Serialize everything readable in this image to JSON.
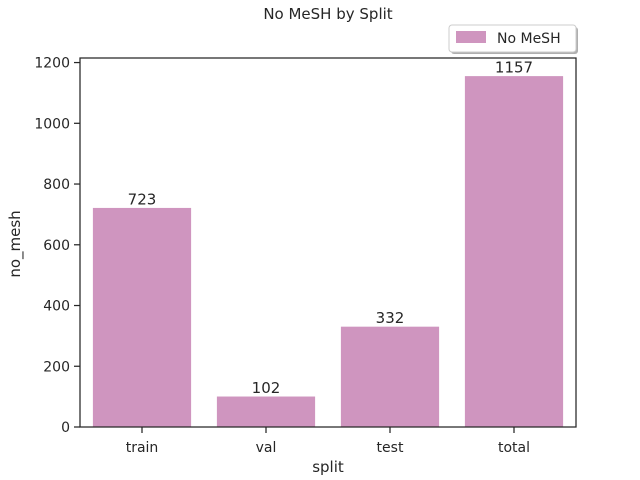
{
  "chart_data": {
    "type": "bar",
    "title": "No MeSH by Split",
    "xlabel": "split",
    "ylabel": "no_mesh",
    "categories": [
      "train",
      "val",
      "test",
      "total"
    ],
    "series": [
      {
        "name": "No MeSH",
        "values": [
          723,
          102,
          332,
          1157
        ],
        "color": "#cf95bf"
      }
    ],
    "data_labels": [
      "723",
      "102",
      "332",
      "1157"
    ],
    "ylim": [
      0,
      1215
    ],
    "yticks": [
      0,
      200,
      400,
      600,
      800,
      1000,
      1200
    ],
    "grid": false,
    "legend_position": "top-right"
  }
}
